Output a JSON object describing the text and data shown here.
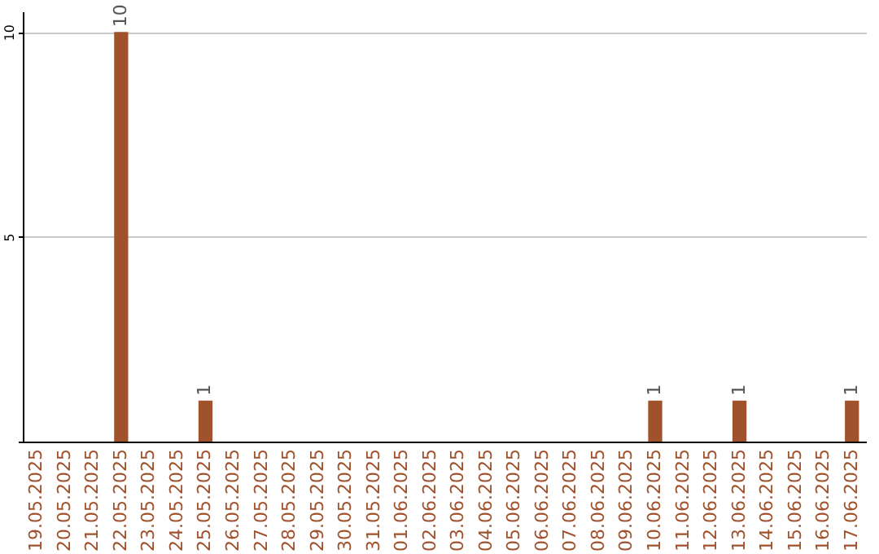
{
  "chart_data": {
    "type": "bar",
    "categories": [
      "19.05.2025",
      "20.05.2025",
      "21.05.2025",
      "22.05.2025",
      "23.05.2025",
      "24.05.2025",
      "25.05.2025",
      "26.05.2025",
      "27.05.2025",
      "28.05.2025",
      "29.05.2025",
      "30.05.2025",
      "31.05.2025",
      "01.06.2025",
      "02.06.2025",
      "03.06.2025",
      "04.06.2025",
      "05.06.2025",
      "06.06.2025",
      "07.06.2025",
      "08.06.2025",
      "09.06.2025",
      "10.06.2025",
      "11.06.2025",
      "12.06.2025",
      "13.06.2025",
      "14.06.2025",
      "15.06.2025",
      "16.06.2025",
      "17.06.2025"
    ],
    "values": [
      0,
      0,
      0,
      10,
      0,
      0,
      1,
      0,
      0,
      0,
      0,
      0,
      0,
      0,
      0,
      0,
      0,
      0,
      0,
      0,
      0,
      0,
      1,
      0,
      0,
      1,
      0,
      0,
      0,
      1
    ],
    "value_labels": [
      null,
      null,
      null,
      "10",
      null,
      null,
      "1",
      null,
      null,
      null,
      null,
      null,
      null,
      null,
      null,
      null,
      null,
      null,
      null,
      null,
      null,
      null,
      "1",
      null,
      null,
      "1",
      null,
      null,
      null,
      "1"
    ],
    "color": "#a0522d",
    "ylim": [
      0,
      10.5
    ],
    "yticks": [
      {
        "value": 0,
        "label": null
      },
      5,
      10
    ],
    "grid": "y"
  }
}
